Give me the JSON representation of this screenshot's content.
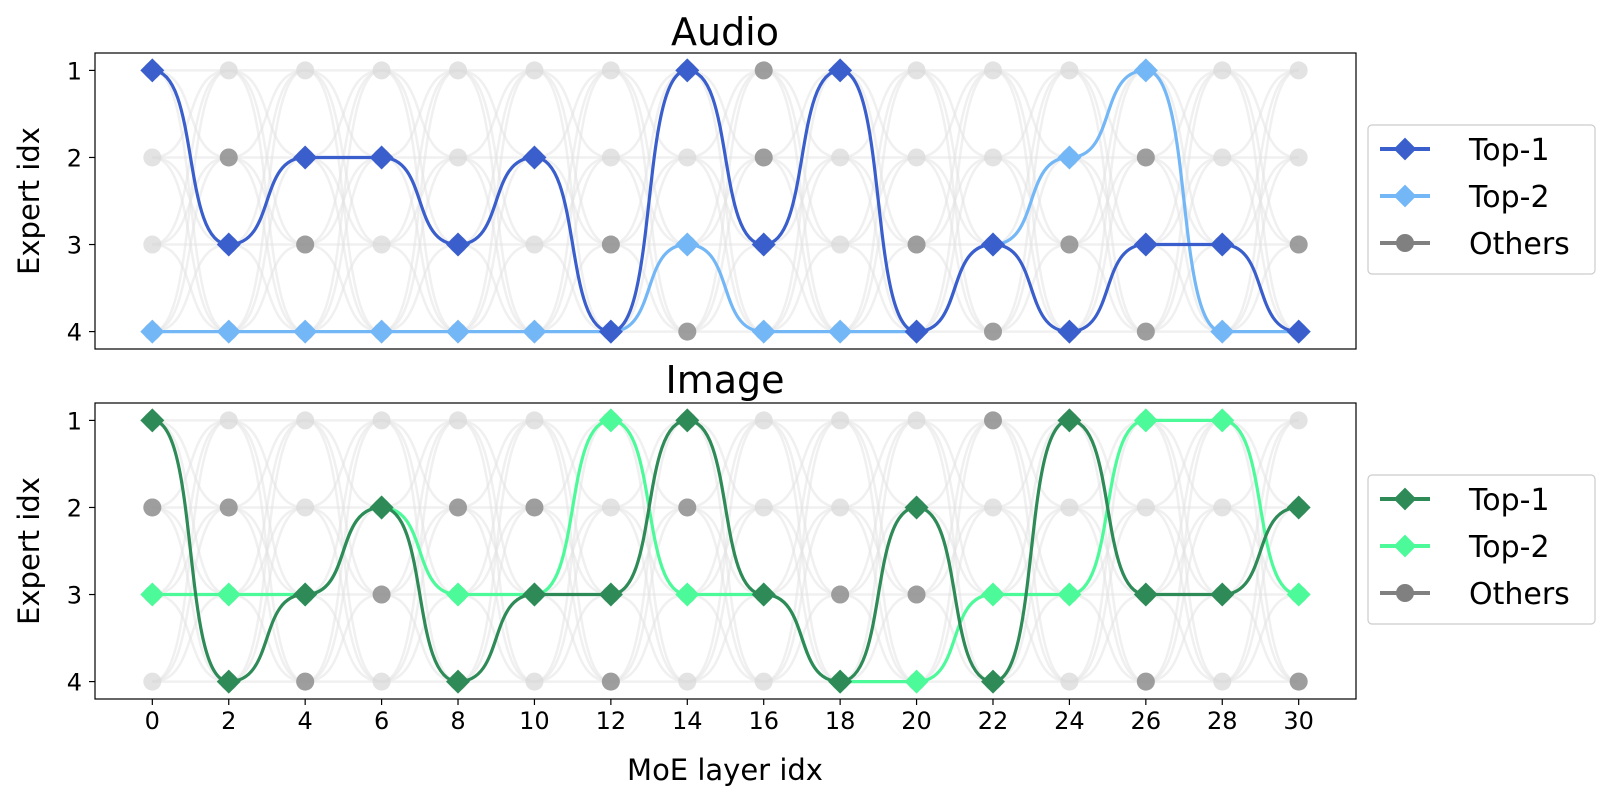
{
  "chart_data": {
    "type": "line",
    "xlabel": "MoE layer idx",
    "x_ticks": [
      0,
      2,
      4,
      6,
      8,
      10,
      12,
      14,
      16,
      18,
      20,
      22,
      24,
      26,
      28,
      30
    ],
    "xlim": [
      -1.5,
      31.5
    ],
    "y_ticks": [
      1,
      2,
      3,
      4
    ],
    "ylim": [
      4.2,
      0.8
    ],
    "layers": [
      0,
      2,
      4,
      6,
      8,
      10,
      12,
      14,
      16,
      18,
      20,
      22,
      24,
      26,
      28,
      30
    ],
    "panels": [
      {
        "title": "Audio",
        "ylabel": "Expert idx",
        "legend": [
          "Top-1",
          "Top-2",
          "Others"
        ],
        "colors": {
          "top1": "#3a5fcd",
          "top2": "#74b7f7",
          "others": "#808080"
        },
        "top1": [
          1,
          3,
          2,
          2,
          3,
          2,
          4,
          1,
          3,
          1,
          4,
          3,
          4,
          3,
          3,
          4
        ],
        "top2": [
          4,
          4,
          4,
          4,
          4,
          4,
          4,
          3,
          4,
          4,
          4,
          3,
          2,
          1,
          4,
          4
        ],
        "others_highlight": [
          {
            "x": 2,
            "y": 2
          },
          {
            "x": 4,
            "y": 3
          },
          {
            "x": 12,
            "y": 3
          },
          {
            "x": 14,
            "y": 4
          },
          {
            "x": 16,
            "y": 1
          },
          {
            "x": 16,
            "y": 2
          },
          {
            "x": 20,
            "y": 3
          },
          {
            "x": 22,
            "y": 4
          },
          {
            "x": 24,
            "y": 3
          },
          {
            "x": 26,
            "y": 2
          },
          {
            "x": 26,
            "y": 4
          },
          {
            "x": 30,
            "y": 3
          }
        ]
      },
      {
        "title": "Image",
        "ylabel": "Expert idx",
        "legend": [
          "Top-1",
          "Top-2",
          "Others"
        ],
        "colors": {
          "top1": "#2e8b57",
          "top2": "#4dfa9a",
          "others": "#808080"
        },
        "top1": [
          1,
          4,
          3,
          2,
          4,
          3,
          3,
          1,
          3,
          4,
          2,
          4,
          1,
          3,
          3,
          2
        ],
        "top2": [
          3,
          3,
          3,
          2,
          3,
          3,
          1,
          3,
          3,
          4,
          4,
          3,
          3,
          1,
          1,
          3
        ],
        "others_highlight": [
          {
            "x": 0,
            "y": 2
          },
          {
            "x": 2,
            "y": 2
          },
          {
            "x": 4,
            "y": 4
          },
          {
            "x": 6,
            "y": 3
          },
          {
            "x": 8,
            "y": 2
          },
          {
            "x": 10,
            "y": 2
          },
          {
            "x": 12,
            "y": 4
          },
          {
            "x": 14,
            "y": 2
          },
          {
            "x": 18,
            "y": 3
          },
          {
            "x": 20,
            "y": 3
          },
          {
            "x": 22,
            "y": 1
          },
          {
            "x": 26,
            "y": 4
          },
          {
            "x": 30,
            "y": 4
          }
        ]
      }
    ]
  }
}
